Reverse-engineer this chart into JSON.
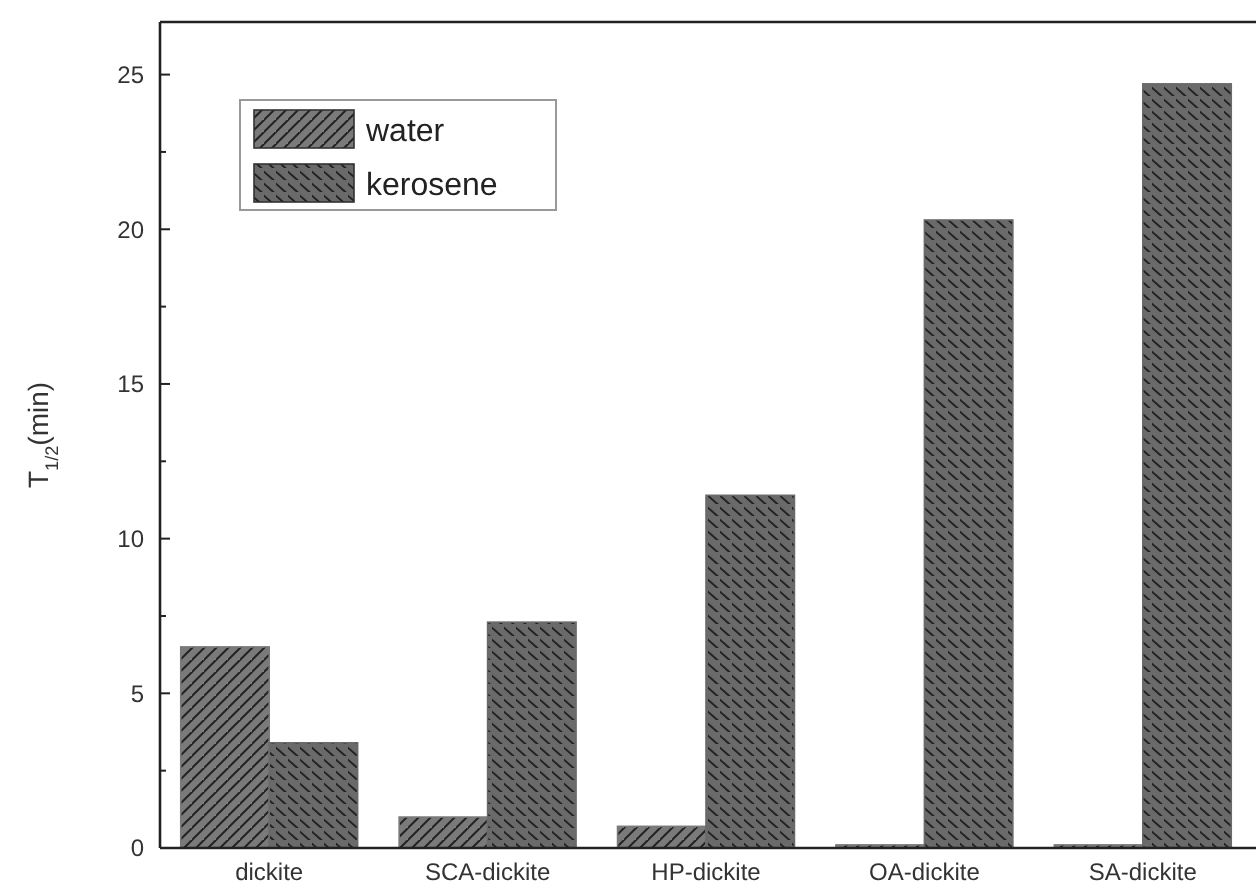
{
  "chart_data": {
    "type": "bar",
    "ylabel": "T$_{1/2}$(min)",
    "categories": [
      "dickite",
      "SCA-dickite",
      "HP-dickite",
      "OA-dickite",
      "SA-dickite"
    ],
    "series": [
      {
        "name": "water",
        "color": "#7a7a7a",
        "values": [
          6.5,
          1.0,
          0.7,
          0.1,
          0.1
        ]
      },
      {
        "name": "kerosene",
        "color": "#6a6a6a",
        "values": [
          3.4,
          7.3,
          11.4,
          20.3,
          24.7
        ]
      }
    ],
    "ylim": [
      0,
      26.7
    ],
    "yticks": [
      0,
      {
        "value": 2.5,
        "label": null
      },
      5,
      {
        "value": 7.5,
        "label": null
      },
      10,
      {
        "value": 12.5,
        "label": null
      },
      15,
      {
        "value": 17.5,
        "label": null
      },
      20,
      {
        "value": 22.5,
        "label": null
      },
      25
    ],
    "grid": false,
    "legend": "top left"
  }
}
